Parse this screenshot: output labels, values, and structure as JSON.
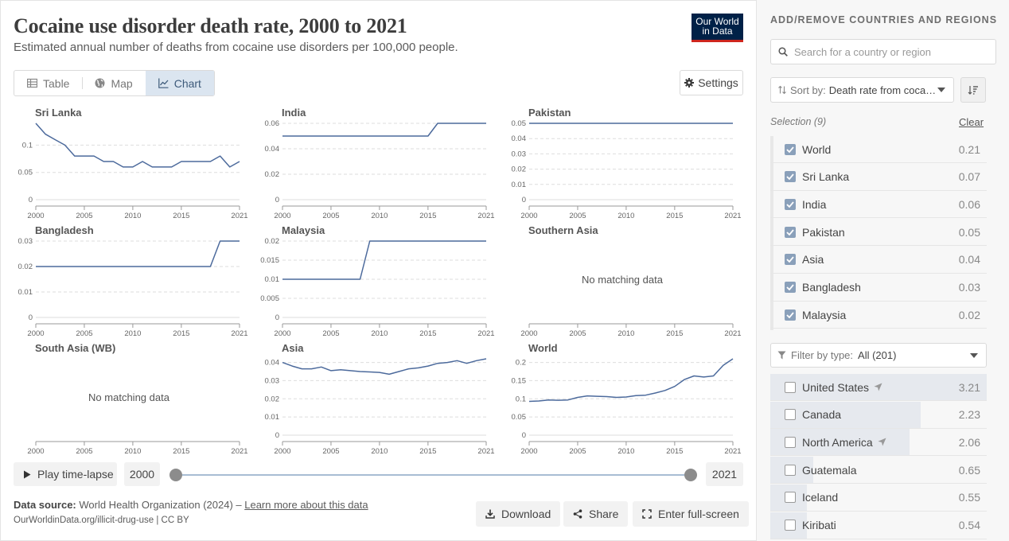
{
  "header": {
    "title": "Cocaine use disorder death rate, 2000 to 2021",
    "subtitle": "Estimated annual number of deaths from cocaine use disorders per 100,000 people.",
    "logo_line1": "Our World",
    "logo_line2": "in Data"
  },
  "tabs": [
    {
      "label": "Table",
      "icon": "table-icon",
      "active": false
    },
    {
      "label": "Map",
      "icon": "globe-icon",
      "active": false
    },
    {
      "label": "Chart",
      "icon": "line-chart-icon",
      "active": true
    }
  ],
  "settings_label": "Settings",
  "no_data_text": "No matching data",
  "line_color": "#4c6a9c",
  "chart_data": [
    {
      "type": "line",
      "title": "Sri Lanka",
      "x": [
        2000,
        2001,
        2002,
        2003,
        2004,
        2005,
        2006,
        2007,
        2008,
        2009,
        2010,
        2011,
        2012,
        2013,
        2014,
        2015,
        2016,
        2017,
        2018,
        2019,
        2020,
        2021
      ],
      "values": [
        0.14,
        0.12,
        0.11,
        0.1,
        0.08,
        0.08,
        0.08,
        0.07,
        0.07,
        0.06,
        0.06,
        0.07,
        0.06,
        0.06,
        0.06,
        0.07,
        0.07,
        0.07,
        0.07,
        0.08,
        0.06,
        0.07
      ],
      "ylim": [
        0,
        0.14
      ],
      "yticks": [
        0,
        0.05,
        0.1
      ],
      "ytick_labels": [
        "0",
        "0.05",
        "0.1"
      ],
      "xticks": [
        "2000",
        "2005",
        "2010",
        "2015",
        "2021"
      ]
    },
    {
      "type": "line",
      "title": "India",
      "x": [
        2000,
        2001,
        2002,
        2003,
        2004,
        2005,
        2006,
        2007,
        2008,
        2009,
        2010,
        2011,
        2012,
        2013,
        2014,
        2015,
        2016,
        2017,
        2018,
        2019,
        2020,
        2021
      ],
      "values": [
        0.05,
        0.05,
        0.05,
        0.05,
        0.05,
        0.05,
        0.05,
        0.05,
        0.05,
        0.05,
        0.05,
        0.05,
        0.05,
        0.05,
        0.05,
        0.05,
        0.06,
        0.06,
        0.06,
        0.06,
        0.06,
        0.06
      ],
      "ylim": [
        0,
        0.06
      ],
      "yticks": [
        0,
        0.02,
        0.04,
        0.06
      ],
      "ytick_labels": [
        "0",
        "0.02",
        "0.04",
        "0.06"
      ],
      "xticks": [
        "2000",
        "2005",
        "2010",
        "2015",
        "2021"
      ]
    },
    {
      "type": "line",
      "title": "Pakistan",
      "x": [
        2000,
        2001,
        2002,
        2003,
        2004,
        2005,
        2006,
        2007,
        2008,
        2009,
        2010,
        2011,
        2012,
        2013,
        2014,
        2015,
        2016,
        2017,
        2018,
        2019,
        2020,
        2021
      ],
      "values": [
        0.05,
        0.05,
        0.05,
        0.05,
        0.05,
        0.05,
        0.05,
        0.05,
        0.05,
        0.05,
        0.05,
        0.05,
        0.05,
        0.05,
        0.05,
        0.05,
        0.05,
        0.05,
        0.05,
        0.05,
        0.05,
        0.05
      ],
      "ylim": [
        0,
        0.05
      ],
      "yticks": [
        0,
        0.01,
        0.02,
        0.03,
        0.04,
        0.05
      ],
      "ytick_labels": [
        "0",
        "0.01",
        "0.02",
        "0.03",
        "0.04",
        "0.05"
      ],
      "xticks": [
        "2000",
        "2005",
        "2010",
        "2015",
        "2021"
      ]
    },
    {
      "type": "line",
      "title": "Bangladesh",
      "x": [
        2000,
        2001,
        2002,
        2003,
        2004,
        2005,
        2006,
        2007,
        2008,
        2009,
        2010,
        2011,
        2012,
        2013,
        2014,
        2015,
        2016,
        2017,
        2018,
        2019,
        2020,
        2021
      ],
      "values": [
        0.02,
        0.02,
        0.02,
        0.02,
        0.02,
        0.02,
        0.02,
        0.02,
        0.02,
        0.02,
        0.02,
        0.02,
        0.02,
        0.02,
        0.02,
        0.02,
        0.02,
        0.02,
        0.02,
        0.03,
        0.03,
        0.03
      ],
      "ylim": [
        0,
        0.03
      ],
      "yticks": [
        0,
        0.01,
        0.02,
        0.03
      ],
      "ytick_labels": [
        "0",
        "0.01",
        "0.02",
        "0.03"
      ],
      "xticks": [
        "2000",
        "2005",
        "2010",
        "2015",
        "2021"
      ]
    },
    {
      "type": "line",
      "title": "Malaysia",
      "x": [
        2000,
        2001,
        2002,
        2003,
        2004,
        2005,
        2006,
        2007,
        2008,
        2009,
        2010,
        2011,
        2012,
        2013,
        2014,
        2015,
        2016,
        2017,
        2018,
        2019,
        2020,
        2021
      ],
      "values": [
        0.01,
        0.01,
        0.01,
        0.01,
        0.01,
        0.01,
        0.01,
        0.01,
        0.01,
        0.02,
        0.02,
        0.02,
        0.02,
        0.02,
        0.02,
        0.02,
        0.02,
        0.02,
        0.02,
        0.02,
        0.02,
        0.02
      ],
      "ylim": [
        0,
        0.02
      ],
      "yticks": [
        0,
        0.005,
        0.01,
        0.015,
        0.02
      ],
      "ytick_labels": [
        "0",
        "0.005",
        "0.01",
        "0.015",
        "0.02"
      ],
      "xticks": [
        "2000",
        "2005",
        "2010",
        "2015",
        "2021"
      ]
    },
    {
      "type": "line",
      "title": "Southern Asia",
      "x": [],
      "values": [],
      "no_data": true,
      "xticks": [
        "2000",
        "2005",
        "2010",
        "2015",
        "2021"
      ]
    },
    {
      "type": "line",
      "title": "South Asia (WB)",
      "x": [],
      "values": [],
      "no_data": true,
      "xticks": [
        "2000",
        "2005",
        "2010",
        "2015",
        "2021"
      ]
    },
    {
      "type": "line",
      "title": "Asia",
      "x": [
        2000,
        2001,
        2002,
        2003,
        2004,
        2005,
        2006,
        2007,
        2008,
        2009,
        2010,
        2011,
        2012,
        2013,
        2014,
        2015,
        2016,
        2017,
        2018,
        2019,
        2020,
        2021
      ],
      "values": [
        0.04,
        0.038,
        0.0365,
        0.0365,
        0.0375,
        0.0355,
        0.036,
        0.0355,
        0.035,
        0.0348,
        0.0345,
        0.0335,
        0.035,
        0.0365,
        0.037,
        0.038,
        0.0395,
        0.04,
        0.041,
        0.0395,
        0.041,
        0.042
      ],
      "ylim": [
        0,
        0.042
      ],
      "yticks": [
        0,
        0.01,
        0.02,
        0.03,
        0.04
      ],
      "ytick_labels": [
        "0",
        "0.01",
        "0.02",
        "0.03",
        "0.04"
      ],
      "xticks": [
        "2000",
        "2005",
        "2010",
        "2015",
        "2021"
      ]
    },
    {
      "type": "line",
      "title": "World",
      "x": [
        2000,
        2001,
        2002,
        2003,
        2004,
        2005,
        2006,
        2007,
        2008,
        2009,
        2010,
        2011,
        2012,
        2013,
        2014,
        2015,
        2016,
        2017,
        2018,
        2019,
        2020,
        2021
      ],
      "values": [
        0.093,
        0.094,
        0.097,
        0.096,
        0.097,
        0.104,
        0.108,
        0.107,
        0.106,
        0.104,
        0.105,
        0.109,
        0.11,
        0.116,
        0.123,
        0.134,
        0.153,
        0.163,
        0.16,
        0.163,
        0.192,
        0.21
      ],
      "ylim": [
        0,
        0.21
      ],
      "yticks": [
        0,
        0.05,
        0.1,
        0.15,
        0.2
      ],
      "ytick_labels": [
        "0",
        "0.05",
        "0.1",
        "0.15",
        "0.2"
      ],
      "xticks": [
        "2000",
        "2005",
        "2010",
        "2015",
        "2021"
      ]
    }
  ],
  "timeline": {
    "play_label": "Play time-lapse",
    "start_year": "2000",
    "end_year": "2021"
  },
  "footer": {
    "source_label": "Data source:",
    "source_text": " World Health Organization (2024) – ",
    "learn_more": "Learn more about this data",
    "url": "OurWorldinData.org/illicit-drug-use | CC BY",
    "download_label": "Download",
    "share_label": "Share",
    "fullscreen_label": "Enter full-screen"
  },
  "sidebar": {
    "heading": "ADD/REMOVE COUNTRIES AND REGIONS",
    "search_placeholder": "Search for a country or region",
    "sort_prefix": "Sort by:",
    "sort_value": "Death rate from coca…",
    "selection_label": "Selection (9)",
    "clear_label": "Clear",
    "selected": [
      {
        "name": "World",
        "value": "0.21"
      },
      {
        "name": "Sri Lanka",
        "value": "0.07"
      },
      {
        "name": "India",
        "value": "0.06"
      },
      {
        "name": "Pakistan",
        "value": "0.05"
      },
      {
        "name": "Asia",
        "value": "0.04"
      },
      {
        "name": "Bangladesh",
        "value": "0.03"
      },
      {
        "name": "Malaysia",
        "value": "0.02"
      }
    ],
    "filter_prefix": "Filter by type:",
    "filter_value": "All (201)",
    "available": [
      {
        "name": "United States",
        "value": "3.21",
        "share": 1.0,
        "has_arrow": true
      },
      {
        "name": "Canada",
        "value": "2.23",
        "share": 0.695,
        "has_arrow": false
      },
      {
        "name": "North America",
        "value": "2.06",
        "share": 0.642,
        "has_arrow": true
      },
      {
        "name": "Guatemala",
        "value": "0.65",
        "share": 0.2,
        "has_arrow": false
      },
      {
        "name": "Iceland",
        "value": "0.55",
        "share": 0.17,
        "has_arrow": false
      },
      {
        "name": "Kiribati",
        "value": "0.54",
        "share": 0.168,
        "has_arrow": false
      }
    ]
  }
}
